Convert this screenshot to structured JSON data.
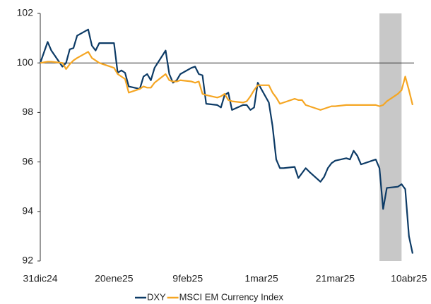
{
  "chart_data": {
    "type": "line",
    "x": [
      "2024-12-31",
      "2025-01-02",
      "2025-01-03",
      "2025-01-06",
      "2025-01-07",
      "2025-01-08",
      "2025-01-09",
      "2025-01-10",
      "2025-01-13",
      "2025-01-14",
      "2025-01-15",
      "2025-01-16",
      "2025-01-17",
      "2025-01-20",
      "2025-01-21",
      "2025-01-22",
      "2025-01-23",
      "2025-01-24",
      "2025-01-27",
      "2025-01-28",
      "2025-01-29",
      "2025-01-30",
      "2025-01-31",
      "2025-02-03",
      "2025-02-04",
      "2025-02-05",
      "2025-02-06",
      "2025-02-07",
      "2025-02-10",
      "2025-02-11",
      "2025-02-12",
      "2025-02-13",
      "2025-02-14",
      "2025-02-17",
      "2025-02-18",
      "2025-02-19",
      "2025-02-20",
      "2025-02-21",
      "2025-02-24",
      "2025-02-25",
      "2025-02-26",
      "2025-02-27",
      "2025-02-28",
      "2025-03-03",
      "2025-03-04",
      "2025-03-05",
      "2025-03-06",
      "2025-03-07",
      "2025-03-10",
      "2025-03-11",
      "2025-03-12",
      "2025-03-13",
      "2025-03-14",
      "2025-03-17",
      "2025-03-18",
      "2025-03-19",
      "2025-03-20",
      "2025-03-21",
      "2025-03-24",
      "2025-03-25",
      "2025-03-26",
      "2025-03-27",
      "2025-03-28",
      "2025-03-31",
      "2025-04-01",
      "2025-04-02",
      "2025-04-03",
      "2025-04-04",
      "2025-04-07",
      "2025-04-08",
      "2025-04-09",
      "2025-04-10",
      "2025-04-11"
    ],
    "series": [
      {
        "name": "DXY",
        "color": "#0d3b66",
        "values": [
          100.0,
          100.85,
          100.5,
          99.85,
          100.0,
          100.55,
          100.6,
          101.1,
          101.35,
          100.7,
          100.5,
          100.8,
          100.8,
          100.8,
          99.6,
          99.7,
          99.6,
          99.05,
          98.95,
          99.45,
          99.55,
          99.3,
          99.8,
          100.5,
          99.55,
          99.2,
          99.3,
          99.55,
          99.8,
          99.85,
          99.55,
          99.5,
          98.35,
          98.3,
          98.2,
          98.7,
          98.8,
          98.1,
          98.3,
          98.3,
          98.1,
          98.2,
          99.2,
          98.4,
          97.45,
          96.1,
          95.75,
          95.75,
          95.8,
          95.35,
          95.55,
          95.75,
          95.6,
          95.2,
          95.4,
          95.75,
          95.95,
          96.05,
          96.15,
          96.1,
          96.45,
          96.25,
          95.9,
          96.05,
          96.1,
          95.75,
          94.1,
          94.95,
          95.0,
          95.1,
          94.9,
          93.0,
          92.3
        ]
      },
      {
        "name": "MSCI EM Currency Index",
        "color": "#f5a623",
        "values": [
          100.0,
          100.05,
          100.05,
          100.0,
          99.75,
          99.95,
          100.1,
          100.2,
          100.45,
          100.2,
          100.1,
          100.0,
          99.95,
          99.8,
          99.55,
          99.45,
          99.35,
          98.8,
          98.95,
          99.05,
          99.0,
          99.0,
          99.2,
          99.55,
          99.3,
          99.25,
          99.25,
          99.3,
          99.25,
          99.2,
          99.25,
          98.75,
          98.7,
          98.6,
          98.65,
          98.75,
          98.5,
          98.45,
          98.4,
          98.45,
          98.65,
          98.9,
          99.1,
          99.1,
          98.8,
          98.6,
          98.35,
          98.4,
          98.55,
          98.5,
          98.5,
          98.3,
          98.25,
          98.1,
          98.15,
          98.2,
          98.25,
          98.25,
          98.3,
          98.3,
          98.3,
          98.3,
          98.3,
          98.3,
          98.3,
          98.25,
          98.3,
          98.45,
          98.75,
          98.9,
          99.45,
          98.9,
          98.3
        ]
      }
    ],
    "xlim": [
      "2024-12-31",
      "2025-04-11"
    ],
    "xticks": [
      {
        "value": "2024-12-31",
        "label": "31dic24"
      },
      {
        "value": "2025-01-20",
        "label": "20ene25"
      },
      {
        "value": "2025-02-09",
        "label": "9feb25"
      },
      {
        "value": "2025-03-01",
        "label": "1mar25"
      },
      {
        "value": "2025-03-21",
        "label": "21mar25"
      },
      {
        "value": "2025-04-10",
        "label": "10abr25"
      }
    ],
    "ylim": [
      92,
      102
    ],
    "yticks": [
      92,
      94,
      96,
      98,
      100,
      102
    ],
    "reference_line": 100,
    "shaded_range": [
      "2025-04-02",
      "2025-04-08"
    ],
    "shade_color": "#c8c8c8",
    "legend": "bottom"
  }
}
